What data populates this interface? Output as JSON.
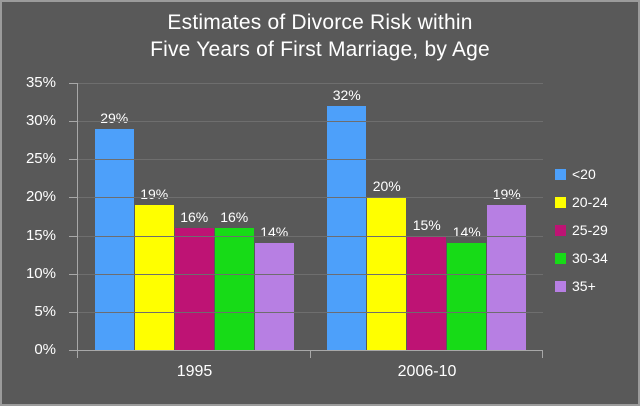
{
  "title_lines": [
    "Estimates of Divorce Risk within",
    "Five Years of First Marriage, by Age"
  ],
  "chart_data": {
    "type": "bar",
    "title": "Estimates of Divorce Risk within Five Years of First Marriage, by Age",
    "categories": [
      "1995",
      "2006-10"
    ],
    "series": [
      {
        "name": "<20",
        "color": "#4DA0FA",
        "values": [
          29,
          32
        ]
      },
      {
        "name": "20-24",
        "color": "#FFFF00",
        "values": [
          19,
          20
        ]
      },
      {
        "name": "25-29",
        "color": "#BE1374",
        "values": [
          16,
          15
        ]
      },
      {
        "name": "30-34",
        "color": "#17DB17",
        "values": [
          16,
          14
        ]
      },
      {
        "name": "35+",
        "color": "#B77FE3",
        "values": [
          14,
          19
        ]
      }
    ],
    "data_labels": [
      "29%",
      "19%",
      "16%",
      "16%",
      "14%",
      "32%",
      "20%",
      "15%",
      "14%",
      "19%"
    ],
    "value_suffix": "%",
    "ylim": [
      0,
      35
    ],
    "ytick_step": 5,
    "ytick_labels": [
      "0%",
      "5%",
      "10%",
      "15%",
      "20%",
      "25%",
      "30%",
      "35%"
    ],
    "grid": true,
    "legend_position": "right",
    "legend_entries": [
      "<20",
      "20-24",
      "25-29",
      "30-34",
      "35+"
    ]
  },
  "colors": {
    "background": "#595959",
    "text": "#FFFFFF",
    "gridline": "#6E6E6E",
    "axis": "#A8A8A8",
    "frame_border": "#9B9B9B"
  }
}
